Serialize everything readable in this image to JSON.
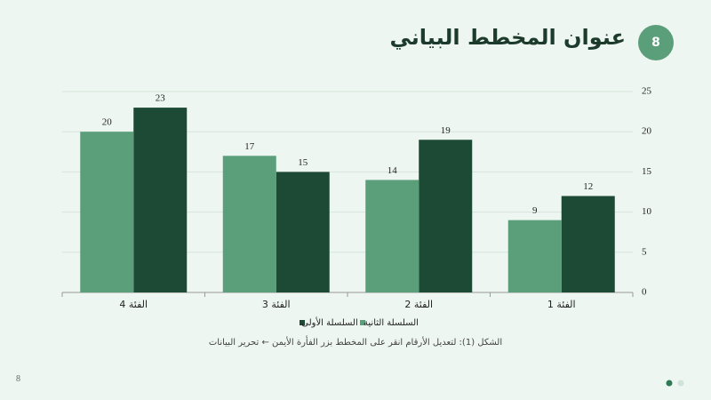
{
  "slide": {
    "badge": 8,
    "page_number": 8
  },
  "chart_data": {
    "type": "bar",
    "title": "عنوان المخطط البياني",
    "caption": "الشكل (1): لتعديل الأرقام انقر على المخطط بزر الفأرة الأيمن ← تحرير البيانات",
    "categories": [
      "الفئة 1",
      "الفئة 2",
      "الفئة 3",
      "الفئة 4"
    ],
    "series": [
      {
        "name": "السلسلة الأولى",
        "color": "#1d4a35",
        "values": [
          12,
          19,
          15,
          23
        ]
      },
      {
        "name": "السلسلة الثانية",
        "color": "#5a9e7a",
        "values": [
          9,
          14,
          17,
          20
        ]
      }
    ],
    "ylim": [
      0,
      25
    ],
    "yticks": [
      0,
      5,
      10,
      15,
      20,
      25
    ],
    "grid": true
  }
}
